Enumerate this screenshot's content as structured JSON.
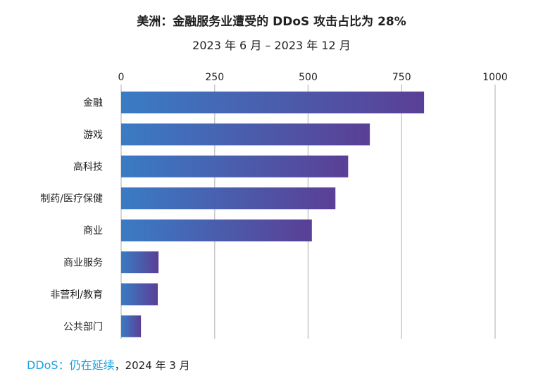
{
  "title": "美洲：金融服务业遭受的 DDoS 攻击占比为 28%",
  "subtitle": "2023 年 6 月 – 2023 年 12 月",
  "footer": {
    "brand": "DDoS：仍在延续",
    "date": "，2024 年 3 月"
  },
  "colors": {
    "bar_start": "#3a7cc4",
    "bar_end": "#5a3f96",
    "grid": "#c8c8c8",
    "brand": "#1aa0e0"
  },
  "chart_data": {
    "type": "bar",
    "orientation": "horizontal",
    "categories": [
      "金融",
      "游戏",
      "高科技",
      "制药/医疗保健",
      "商业",
      "商业服务",
      "非营利/教育",
      "公共部门"
    ],
    "values": [
      810,
      665,
      607,
      573,
      510,
      100,
      98,
      53
    ],
    "xlim": [
      0,
      1000
    ],
    "ticks": [
      "0",
      "250",
      "500",
      "750",
      "1000"
    ],
    "tick_values": [
      0,
      250,
      500,
      750,
      1000
    ],
    "axis_position": "top",
    "grid": true,
    "legend": "none"
  }
}
